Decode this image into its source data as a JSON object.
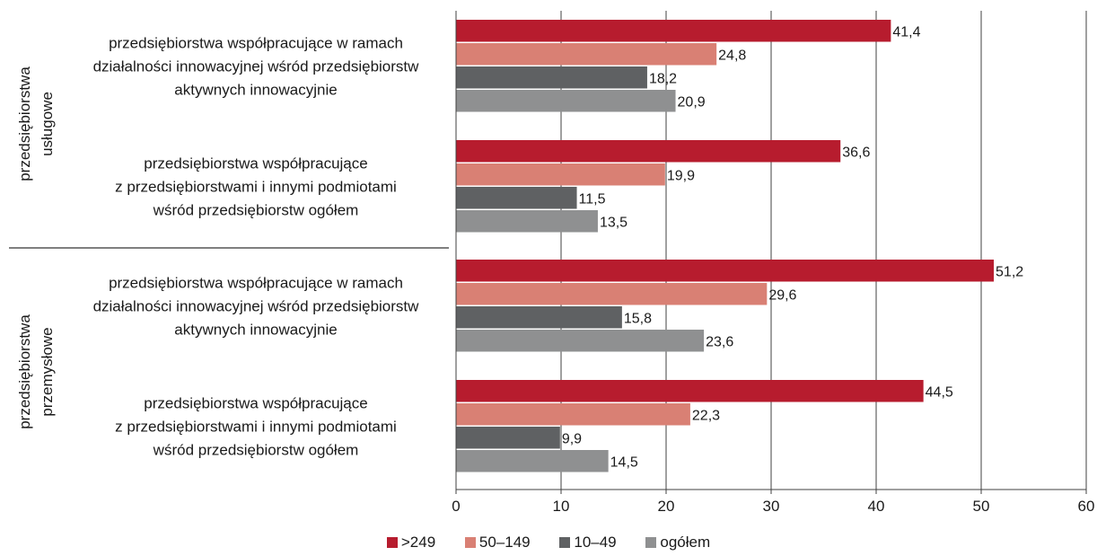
{
  "chart_data": {
    "type": "bar",
    "orientation": "horizontal",
    "title": "",
    "xlabel": "",
    "ylabel": "",
    "xlim": [
      0,
      60
    ],
    "x_ticks": [
      "0",
      "10",
      "20",
      "30",
      "40",
      "50",
      "60"
    ],
    "grid": "vertical",
    "legend_position": "bottom",
    "groups": [
      {
        "name": "przedsiębiorstwa usługowe",
        "categories": [
          {
            "label_lines": [
              "przedsiębiorstwa współpracujące w ramach",
              "działalności innowacyjnej wśród przedsiębiorstw",
              "aktywnych innowacyjnie"
            ],
            "values": [
              41.4,
              24.8,
              18.2,
              20.9
            ],
            "value_labels": [
              "41,4",
              "24,8",
              "18,2",
              "20,9"
            ]
          },
          {
            "label_lines": [
              "przedsiębiorstwa współpracujące",
              "z przedsiębiorstwami i innymi podmiotami",
              "wśród przedsiębiorstw ogółem"
            ],
            "values": [
              36.6,
              19.9,
              11.5,
              13.5
            ],
            "value_labels": [
              "36,6",
              "19,9",
              "11,5",
              "13,5"
            ]
          }
        ]
      },
      {
        "name": "przedsiębiorstwa przemysłowe",
        "categories": [
          {
            "label_lines": [
              "przedsiębiorstwa współpracujące w ramach",
              "działalności innowacyjnej wśród przedsiębiorstw",
              "aktywnych innowacyjnie"
            ],
            "values": [
              51.2,
              29.6,
              15.8,
              23.6
            ],
            "value_labels": [
              "51,2",
              "29,6",
              "15,8",
              "23,6"
            ]
          },
          {
            "label_lines": [
              "przedsiębiorstwa współpracujące",
              "z przedsiębiorstwami i innymi podmiotami",
              "wśród przedsiębiorstw ogółem"
            ],
            "values": [
              44.5,
              22.3,
              9.9,
              14.5
            ],
            "value_labels": [
              "44,5",
              "22,3",
              "9,9",
              "14,5"
            ]
          }
        ]
      }
    ],
    "series": [
      {
        "name": ">249",
        "color": "#b71c2e"
      },
      {
        "name": "50–149",
        "color": "#d98074"
      },
      {
        "name": "10–49",
        "color": "#5f6163"
      },
      {
        "name": "ogółem",
        "color": "#8f9091"
      }
    ]
  }
}
